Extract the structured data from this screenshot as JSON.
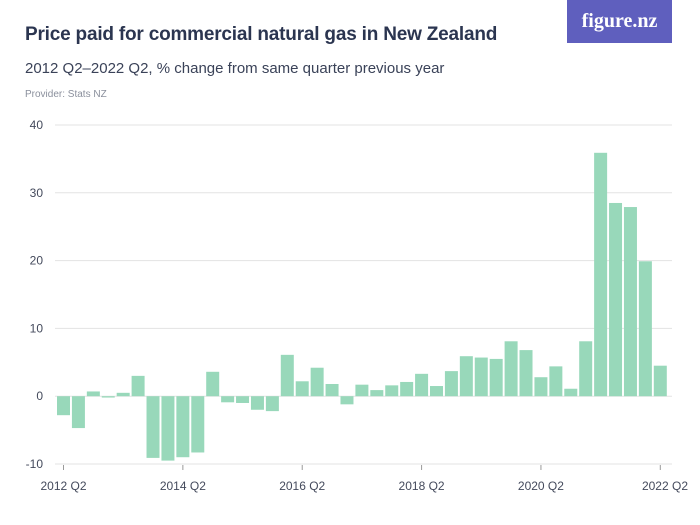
{
  "header": {
    "title": "Price paid for commercial natural gas in New Zealand",
    "subtitle": "2012 Q2–2022 Q2, % change from same quarter previous year",
    "provider": "Provider: Stats NZ",
    "brand": "figure.nz"
  },
  "colors": {
    "bar": "#98d8ba",
    "grid": "#e3e3e3",
    "brand_bg": "#5f5fbe"
  },
  "chart_data": {
    "type": "bar",
    "title": "Price paid for commercial natural gas in New Zealand",
    "subtitle": "2012 Q2–2022 Q2, % change from same quarter previous year",
    "xlabel": "",
    "ylabel": "",
    "ylim": [
      -10,
      40
    ],
    "yticks": [
      -10,
      0,
      10,
      20,
      30,
      40
    ],
    "grid": true,
    "x_tick_labels": [
      "2012 Q2",
      "2014 Q2",
      "2016 Q2",
      "2018 Q2",
      "2020 Q2",
      "2022 Q2"
    ],
    "categories": [
      "2012 Q2",
      "2012 Q3",
      "2012 Q4",
      "2013 Q1",
      "2013 Q2",
      "2013 Q3",
      "2013 Q4",
      "2014 Q1",
      "2014 Q2",
      "2014 Q3",
      "2014 Q4",
      "2015 Q1",
      "2015 Q2",
      "2015 Q3",
      "2015 Q4",
      "2016 Q1",
      "2016 Q2",
      "2016 Q3",
      "2016 Q4",
      "2017 Q1",
      "2017 Q2",
      "2017 Q3",
      "2017 Q4",
      "2018 Q1",
      "2018 Q2",
      "2018 Q3",
      "2018 Q4",
      "2019 Q1",
      "2019 Q2",
      "2019 Q3",
      "2019 Q4",
      "2020 Q1",
      "2020 Q2",
      "2020 Q3",
      "2020 Q4",
      "2021 Q1",
      "2021 Q2",
      "2021 Q3",
      "2021 Q4",
      "2022 Q1",
      "2022 Q2"
    ],
    "values": [
      -2.8,
      -4.7,
      0.7,
      -0.2,
      0.5,
      3.0,
      -9.1,
      -9.5,
      -9.0,
      -8.3,
      3.6,
      -0.9,
      -1.0,
      -2.0,
      -2.2,
      6.1,
      2.2,
      4.2,
      1.8,
      -1.2,
      1.7,
      0.9,
      1.6,
      2.1,
      3.3,
      1.5,
      3.7,
      5.9,
      5.7,
      5.5,
      8.1,
      6.8,
      2.8,
      4.4,
      1.1,
      8.1,
      35.9,
      28.5,
      27.9,
      19.9,
      4.5
    ]
  }
}
